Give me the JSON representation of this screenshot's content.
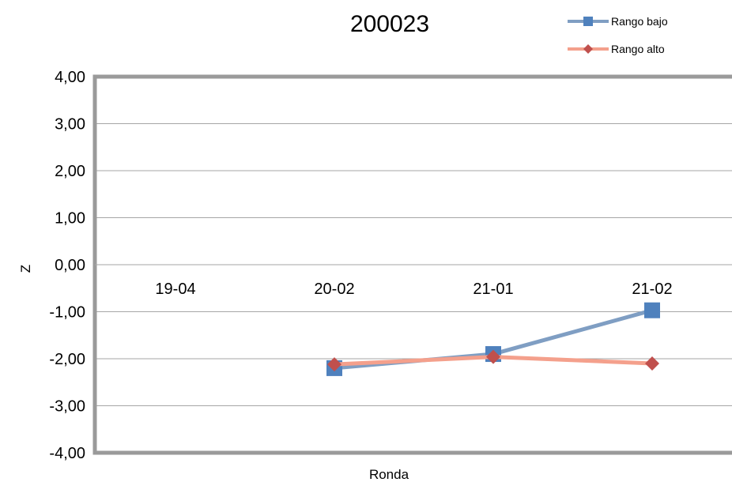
{
  "chart_data": {
    "type": "line",
    "title": "200023",
    "xlabel": "Ronda",
    "ylabel": "Z",
    "categories": [
      "19-04",
      "20-02",
      "21-01",
      "21-02"
    ],
    "ylim": [
      -4,
      4
    ],
    "yticks": [
      "4,00",
      "3,00",
      "2,00",
      "1,00",
      "0,00",
      "-1,00",
      "-2,00",
      "-3,00",
      "-4,00"
    ],
    "grid": true,
    "legend_position": "top-right",
    "series": [
      {
        "name": "Rango bajo",
        "color": "#7F9EC3",
        "marker_color": "#4F81BD",
        "marker": "square",
        "values": [
          null,
          -2.2,
          -1.9,
          -0.97
        ]
      },
      {
        "name": "Rango alto",
        "color": "#F4A08C",
        "marker_color": "#C0504D",
        "marker": "diamond",
        "values": [
          null,
          -2.12,
          -1.96,
          -2.1
        ]
      }
    ]
  }
}
